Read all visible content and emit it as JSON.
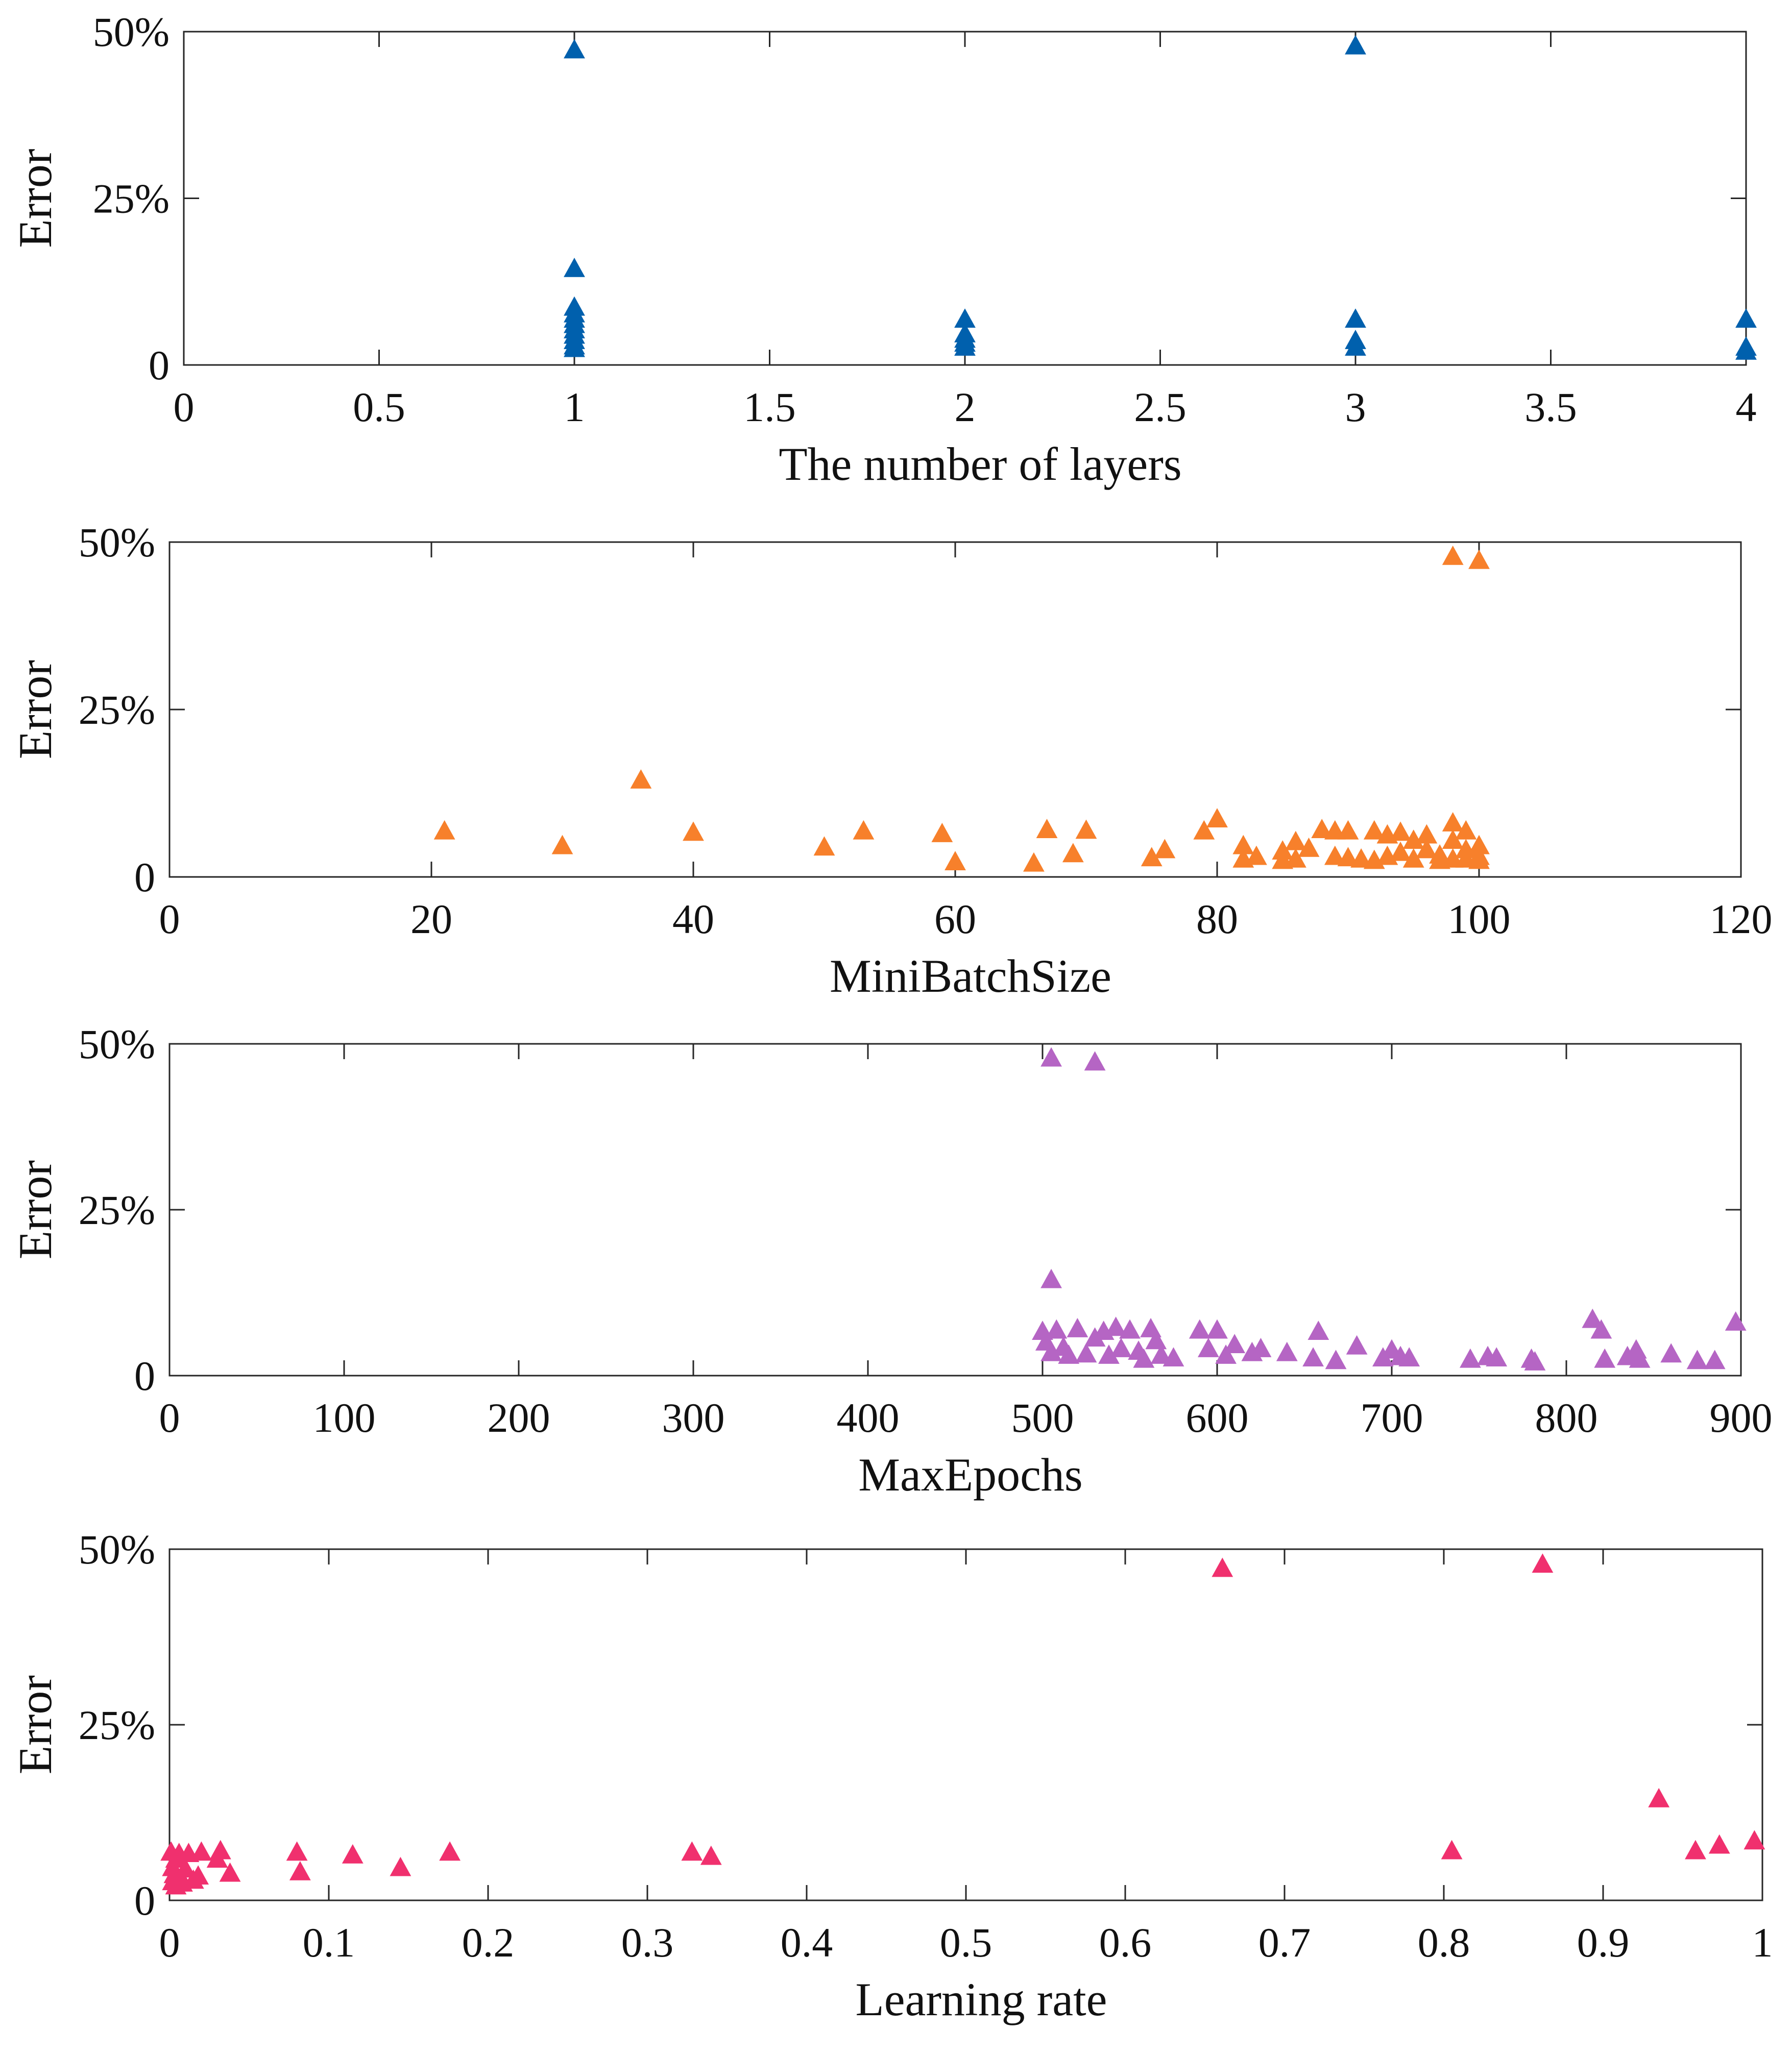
{
  "figure": {
    "background": "#ffffff",
    "axis_color": "#262626"
  },
  "chart_data": [
    {
      "type": "scatter",
      "title": "",
      "xlabel": "The number of layers",
      "ylabel": "Error",
      "xlim": [
        0,
        4
      ],
      "ylim": [
        0,
        50
      ],
      "xticks": [
        0,
        0.5,
        1,
        1.5,
        2,
        2.5,
        3,
        3.5,
        4
      ],
      "xtick_labels": [
        "0",
        "0.5",
        "1",
        "1.5",
        "2",
        "2.5",
        "3",
        "3.5",
        "4"
      ],
      "yticks": [
        0,
        25,
        50
      ],
      "ytick_labels": [
        "0",
        "25%",
        "50%"
      ],
      "marker": "triangle",
      "color": "#0060ad",
      "series": [
        {
          "name": "layers",
          "points": [
            [
              1,
              47.2
            ],
            [
              1,
              14.4
            ],
            [
              1,
              8.6
            ],
            [
              1,
              7.6
            ],
            [
              1,
              6.8
            ],
            [
              1,
              6.0
            ],
            [
              1,
              5.2
            ],
            [
              1,
              4.4
            ],
            [
              1,
              3.6
            ],
            [
              1,
              2.8
            ],
            [
              1,
              2.4
            ],
            [
              2,
              6.8
            ],
            [
              2,
              4.6
            ],
            [
              2,
              3.8
            ],
            [
              2,
              3.2
            ],
            [
              2,
              2.6
            ],
            [
              3,
              47.8
            ],
            [
              3,
              6.8
            ],
            [
              3,
              3.6
            ],
            [
              3,
              2.6
            ],
            [
              4,
              6.8
            ],
            [
              4,
              2.6
            ],
            [
              4,
              2.0
            ]
          ]
        }
      ]
    },
    {
      "type": "scatter",
      "title": "",
      "xlabel": "MiniBatchSize",
      "ylabel": "Error",
      "xlim": [
        0,
        120
      ],
      "ylim": [
        0,
        50
      ],
      "xticks": [
        0,
        20,
        40,
        60,
        80,
        100,
        120
      ],
      "xtick_labels": [
        "0",
        "20",
        "40",
        "60",
        "80",
        "100",
        "120"
      ],
      "yticks": [
        0,
        25,
        50
      ],
      "ytick_labels": [
        "0",
        "25%",
        "50%"
      ],
      "marker": "triangle",
      "color": "#f7802b",
      "series": [
        {
          "name": "minibatch",
          "points": [
            [
              98,
              47.8
            ],
            [
              100,
              47.2
            ],
            [
              36,
              14.4
            ],
            [
              21,
              6.8
            ],
            [
              30,
              4.6
            ],
            [
              40,
              6.6
            ],
            [
              50,
              4.4
            ],
            [
              53,
              6.8
            ],
            [
              59,
              6.4
            ],
            [
              60,
              2.2
            ],
            [
              66,
              2.0
            ],
            [
              67,
              7.0
            ],
            [
              69,
              3.4
            ],
            [
              70,
              6.9
            ],
            [
              75,
              2.8
            ],
            [
              76,
              4.0
            ],
            [
              79,
              6.8
            ],
            [
              80,
              8.6
            ],
            [
              82,
              4.6
            ],
            [
              82,
              2.6
            ],
            [
              83,
              3.0
            ],
            [
              85,
              3.8
            ],
            [
              85,
              2.4
            ],
            [
              86,
              5.2
            ],
            [
              86,
              2.6
            ],
            [
              87,
              4.2
            ],
            [
              88,
              7.0
            ],
            [
              89,
              6.8
            ],
            [
              89,
              3.0
            ],
            [
              90,
              6.8
            ],
            [
              90,
              2.8
            ],
            [
              91,
              2.6
            ],
            [
              92,
              6.8
            ],
            [
              92,
              2.4
            ],
            [
              93,
              6.2
            ],
            [
              93,
              3.0
            ],
            [
              94,
              6.6
            ],
            [
              94,
              3.6
            ],
            [
              95,
              5.4
            ],
            [
              95,
              2.6
            ],
            [
              96,
              6.2
            ],
            [
              96,
              4.0
            ],
            [
              97,
              3.2
            ],
            [
              97,
              2.4
            ],
            [
              98,
              8.0
            ],
            [
              98,
              5.4
            ],
            [
              98,
              2.6
            ],
            [
              99,
              6.8
            ],
            [
              99,
              4.0
            ],
            [
              99,
              2.6
            ],
            [
              100,
              4.6
            ],
            [
              100,
              3.0
            ],
            [
              100,
              2.4
            ]
          ]
        }
      ]
    },
    {
      "type": "scatter",
      "title": "",
      "xlabel": "MaxEpochs",
      "ylabel": "Error",
      "xlim": [
        0,
        900
      ],
      "ylim": [
        0,
        50
      ],
      "xticks": [
        0,
        100,
        200,
        300,
        400,
        500,
        600,
        700,
        800,
        900
      ],
      "xtick_labels": [
        "0",
        "100",
        "200",
        "300",
        "400",
        "500",
        "600",
        "700",
        "800",
        "900"
      ],
      "yticks": [
        0,
        25,
        50
      ],
      "ytick_labels": [
        "0",
        "25%",
        "50%"
      ],
      "marker": "triangle",
      "color": "#b565c4",
      "series": [
        {
          "name": "epochs",
          "points": [
            [
              505,
              47.8
            ],
            [
              530,
              47.2
            ],
            [
              505,
              14.4
            ],
            [
              500,
              6.6
            ],
            [
              502,
              5.0
            ],
            [
              505,
              3.4
            ],
            [
              508,
              6.8
            ],
            [
              512,
              4.2
            ],
            [
              515,
              3.0
            ],
            [
              520,
              7.0
            ],
            [
              525,
              3.2
            ],
            [
              530,
              5.6
            ],
            [
              535,
              6.6
            ],
            [
              538,
              3.0
            ],
            [
              542,
              7.2
            ],
            [
              545,
              4.0
            ],
            [
              550,
              6.8
            ],
            [
              555,
              3.6
            ],
            [
              558,
              2.4
            ],
            [
              562,
              7.0
            ],
            [
              565,
              5.2
            ],
            [
              568,
              3.0
            ],
            [
              575,
              2.6
            ],
            [
              590,
              6.8
            ],
            [
              595,
              4.0
            ],
            [
              600,
              6.8
            ],
            [
              605,
              3.0
            ],
            [
              610,
              4.6
            ],
            [
              620,
              3.4
            ],
            [
              625,
              4.0
            ],
            [
              640,
              3.4
            ],
            [
              655,
              2.6
            ],
            [
              658,
              6.6
            ],
            [
              668,
              2.2
            ],
            [
              680,
              4.4
            ],
            [
              695,
              2.6
            ],
            [
              700,
              3.8
            ],
            [
              705,
              2.8
            ],
            [
              710,
              2.6
            ],
            [
              745,
              2.4
            ],
            [
              755,
              2.8
            ],
            [
              760,
              2.6
            ],
            [
              780,
              2.4
            ],
            [
              782,
              2.0
            ],
            [
              815,
              8.4
            ],
            [
              820,
              6.8
            ],
            [
              822,
              2.4
            ],
            [
              835,
              2.8
            ],
            [
              840,
              3.8
            ],
            [
              842,
              2.4
            ],
            [
              860,
              3.2
            ],
            [
              875,
              2.2
            ],
            [
              885,
              2.2
            ],
            [
              897,
              8.0
            ]
          ]
        }
      ]
    },
    {
      "type": "scatter",
      "title": "",
      "xlabel": "Learning rate",
      "ylabel": "Error",
      "xlim": [
        0,
        1
      ],
      "ylim": [
        0,
        50
      ],
      "xticks": [
        0,
        0.1,
        0.2,
        0.3,
        0.4,
        0.5,
        0.6,
        0.7,
        0.8,
        0.9,
        1
      ],
      "xtick_labels": [
        "0",
        "0.1",
        "0.2",
        "0.3",
        "0.4",
        "0.5",
        "0.6",
        "0.7",
        "0.8",
        "0.9",
        "1"
      ],
      "yticks": [
        0,
        25,
        50
      ],
      "ytick_labels": [
        "0",
        "25%",
        "50%"
      ],
      "marker": "triangle",
      "color": "#f0306e",
      "series": [
        {
          "name": "learning-rate",
          "points": [
            [
              0.661,
              47.2
            ],
            [
              0.862,
              47.8
            ],
            [
              0.935,
              14.4
            ],
            [
              0.805,
              7.0
            ],
            [
              0.958,
              7.0
            ],
            [
              0.973,
              7.8
            ],
            [
              0.995,
              8.4
            ],
            [
              0.001,
              6.8
            ],
            [
              0.002,
              4.6
            ],
            [
              0.002,
              2.6
            ],
            [
              0.003,
              3.6
            ],
            [
              0.004,
              5.8
            ],
            [
              0.004,
              2.0
            ],
            [
              0.005,
              2.8
            ],
            [
              0.006,
              6.6
            ],
            [
              0.007,
              3.2
            ],
            [
              0.008,
              2.4
            ],
            [
              0.01,
              4.4
            ],
            [
              0.012,
              6.6
            ],
            [
              0.015,
              2.8
            ],
            [
              0.018,
              3.4
            ],
            [
              0.02,
              6.8
            ],
            [
              0.03,
              5.8
            ],
            [
              0.032,
              7.0
            ],
            [
              0.038,
              3.8
            ],
            [
              0.08,
              6.8
            ],
            [
              0.082,
              4.0
            ],
            [
              0.115,
              6.4
            ],
            [
              0.145,
              4.6
            ],
            [
              0.176,
              6.8
            ],
            [
              0.328,
              6.8
            ],
            [
              0.34,
              6.2
            ]
          ]
        }
      ]
    }
  ]
}
